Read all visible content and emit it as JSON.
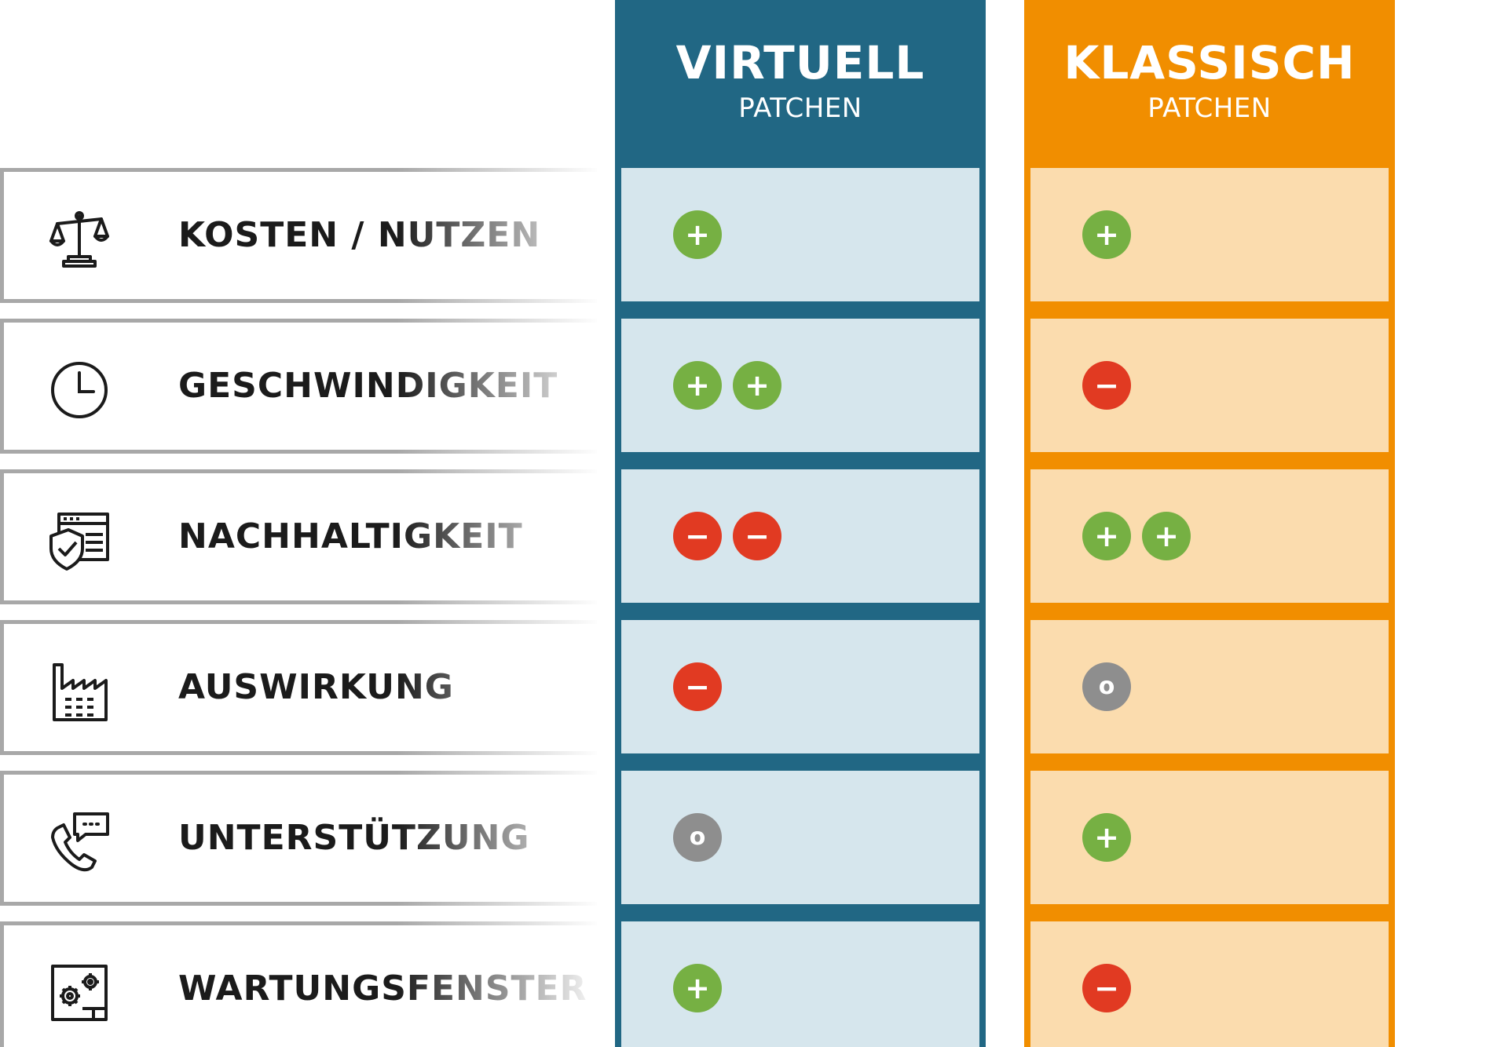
{
  "columns": [
    {
      "title": "VIRTUELL",
      "subtitle": "PATCHEN",
      "color": "#216784",
      "cell_color": "#d6e6ed"
    },
    {
      "title": "KLASSISCH",
      "subtitle": "PATCHEN",
      "color": "#f18e00",
      "cell_color": "#fbdcae"
    }
  ],
  "rows": [
    {
      "label": "KOSTEN / NUTZEN",
      "icon": "scale-icon",
      "virtuell": [
        "+"
      ],
      "klassisch": [
        "+"
      ]
    },
    {
      "label": "GESCHWINDIGKEIT",
      "icon": "clock-icon",
      "virtuell": [
        "+",
        "+"
      ],
      "klassisch": [
        "−"
      ]
    },
    {
      "label": "NACHHALTIGKEIT",
      "icon": "shield-window-icon",
      "virtuell": [
        "−",
        "−"
      ],
      "klassisch": [
        "+",
        "+"
      ]
    },
    {
      "label": "AUSWIRKUNG",
      "icon": "factory-icon",
      "virtuell": [
        "−"
      ],
      "klassisch": [
        "o"
      ]
    },
    {
      "label": "UNTERSTÜTZUNG",
      "icon": "phone-chat-icon",
      "virtuell": [
        "o"
      ],
      "klassisch": [
        "+"
      ]
    },
    {
      "label": "WARTUNGSFENSTER",
      "icon": "gear-window-icon",
      "virtuell": [
        "+"
      ],
      "klassisch": [
        "−"
      ]
    }
  ],
  "symbol_colors": {
    "plus": "#76b043",
    "minus": "#e13a22",
    "neutral": "#8e8e8e"
  }
}
